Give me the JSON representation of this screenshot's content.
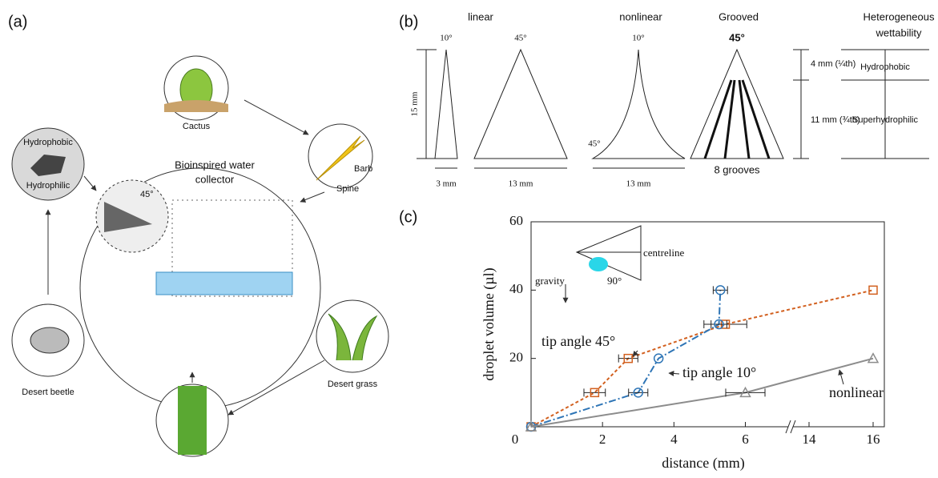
{
  "panel_a": {
    "label": "(a)",
    "cactus": "Cactus",
    "barb": "Barb",
    "spine": "Spine",
    "hydrophobic": "Hydrophobic",
    "hydrophilic": "Hydrophilic",
    "collector_title": [
      "Bioinspired water",
      "collector"
    ],
    "angle": "45°",
    "desert_beetle": "Desert beetle",
    "desert_grass": "Desert grass"
  },
  "panel_b": {
    "label": "(b)",
    "columns": [
      "linear",
      "nonlinear",
      "Grooved"
    ],
    "hetero": [
      "Heterogeneous",
      "wettability"
    ],
    "linear_narrow": {
      "angle": "10°",
      "height": "15 mm",
      "base": "3 mm"
    },
    "linear_wide": {
      "angle": "45°",
      "base": "13 mm"
    },
    "nonlinear": {
      "tip_angle": "10°",
      "base_angle": "45°",
      "base": "13 mm"
    },
    "grooved": {
      "angle": "45°",
      "grooves": "8 grooves",
      "upper": "4 mm (¼th)",
      "lower": "11 mm (¾th)"
    },
    "wettability": {
      "upper": "Hydrophobic",
      "lower": "Superhydrophilic"
    }
  },
  "chart_data": {
    "type": "line",
    "panel_label": "(c)",
    "x_label": "distance (mm)",
    "y_label": "droplet volume (µl)",
    "xlim": [
      0,
      16.35
    ],
    "x_break": [
      7.2,
      13.5
    ],
    "xticks": [
      0,
      2,
      4,
      6,
      14,
      16
    ],
    "ylim": [
      0,
      60
    ],
    "yticks": [
      20,
      40,
      60
    ],
    "series": [
      {
        "name": "tip angle 45°",
        "color": "#d2601f",
        "marker": "square",
        "x": [
          0,
          1.78,
          2.72,
          5.44,
          16
        ],
        "values": [
          0,
          10,
          20,
          30,
          40
        ],
        "x_errors": [
          null,
          0.3,
          0.27,
          0.6,
          null
        ]
      },
      {
        "name": "tip angle 10°",
        "color": "#2e75b6",
        "marker": "circle",
        "x": [
          0,
          3.0,
          3.57,
          5.26,
          5.3
        ],
        "values": [
          0,
          10,
          20,
          30,
          40
        ],
        "x_errors": [
          null,
          0.27,
          null,
          0.22,
          0.2
        ]
      },
      {
        "name": "nonlinear",
        "color": "#8c8c8c",
        "marker": "triangle",
        "x": [
          0,
          6.0,
          16
        ],
        "values": [
          0,
          10,
          20
        ],
        "x_errors": [
          null,
          0.55,
          null
        ]
      }
    ],
    "inset": {
      "centreline": "centreline",
      "gravity": "gravity",
      "angle": "90°"
    }
  }
}
